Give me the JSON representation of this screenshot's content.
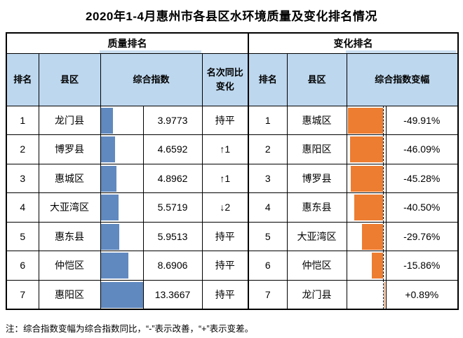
{
  "title": "2020年1-4月惠州市各县区水环境质量及变化排名情况",
  "note": "注：综合指数变幅为综合指数同比，“-”表示改善，“+”表示变差。",
  "colors": {
    "quality_bar": "#6089BF",
    "change_bar": "#ED7D31",
    "header_fill": "#BDD7EE",
    "border": "#000000"
  },
  "quality": {
    "section_title": "质量排名",
    "headers": {
      "rank": "排名",
      "county": "县区",
      "index": "综合指数",
      "change": "名次同比变化"
    },
    "rows": [
      {
        "rank": "1",
        "county": "龙门县",
        "index": "3.9773",
        "index_value": 3.9773,
        "change": "持平"
      },
      {
        "rank": "2",
        "county": "博罗县",
        "index": "4.6592",
        "index_value": 4.6592,
        "change": "↑1"
      },
      {
        "rank": "3",
        "county": "惠城区",
        "index": "4.8962",
        "index_value": 4.8962,
        "change": "↑1"
      },
      {
        "rank": "4",
        "county": "大亚湾区",
        "index": "5.5719",
        "index_value": 5.5719,
        "change": "↓2"
      },
      {
        "rank": "5",
        "county": "惠东县",
        "index": "5.9513",
        "index_value": 5.9513,
        "change": "持平"
      },
      {
        "rank": "6",
        "county": "仲恺区",
        "index": "8.6906",
        "index_value": 8.6906,
        "change": "持平"
      },
      {
        "rank": "7",
        "county": "惠阳区",
        "index": "13.3667",
        "index_value": 13.3667,
        "change": "持平"
      }
    ]
  },
  "variation": {
    "section_title": "变化排名",
    "headers": {
      "rank": "排名",
      "county": "县区",
      "delta": "综合指数变幅"
    },
    "rows": [
      {
        "rank": "1",
        "county": "惠城区",
        "delta": "-49.91%",
        "delta_value": -49.91
      },
      {
        "rank": "2",
        "county": "惠阳区",
        "delta": "-46.09%",
        "delta_value": -46.09
      },
      {
        "rank": "3",
        "county": "博罗县",
        "delta": "-45.28%",
        "delta_value": -45.28
      },
      {
        "rank": "4",
        "county": "惠东县",
        "delta": "-40.50%",
        "delta_value": -40.5
      },
      {
        "rank": "5",
        "county": "大亚湾区",
        "delta": "-29.76%",
        "delta_value": -29.76
      },
      {
        "rank": "6",
        "county": "仲恺区",
        "delta": "-15.86%",
        "delta_value": -15.86
      },
      {
        "rank": "7",
        "county": "龙门县",
        "delta": "+0.89%",
        "delta_value": 0.89
      }
    ]
  },
  "chart_data": [
    {
      "type": "bar",
      "orientation": "horizontal",
      "title": "综合指数",
      "categories": [
        "龙门县",
        "博罗县",
        "惠城区",
        "大亚湾区",
        "惠东县",
        "仲恺区",
        "惠阳区"
      ],
      "values": [
        3.9773,
        4.6592,
        4.8962,
        5.5719,
        5.9513,
        8.6906,
        13.3667
      ],
      "xlim": [
        0,
        13.3667
      ],
      "color": "#6089BF",
      "grid": false,
      "legend": false
    },
    {
      "type": "bar",
      "orientation": "horizontal",
      "title": "综合指数变幅",
      "categories": [
        "惠城区",
        "惠阳区",
        "博罗县",
        "惠东县",
        "大亚湾区",
        "仲恺区",
        "龙门县"
      ],
      "values": [
        -49.91,
        -46.09,
        -45.28,
        -40.5,
        -29.76,
        -15.86,
        0.89
      ],
      "unit": "%",
      "zero_axis_style": "dashed",
      "color": "#ED7D31",
      "grid": false,
      "legend": false
    }
  ]
}
